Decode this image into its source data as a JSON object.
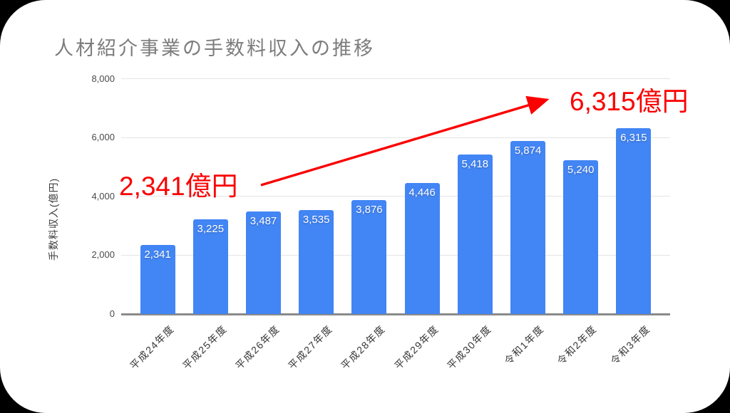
{
  "card": {
    "background": "#ffffff",
    "outside_background": "#000000"
  },
  "chart_data": {
    "type": "bar",
    "title": "人材紹介事業の手数料収入の推移",
    "categories": [
      "平成24年度",
      "平成25年度",
      "平成26年度",
      "平成27年度",
      "平成28年度",
      "平成29年度",
      "平成30年度",
      "令和1年度",
      "令和2年度",
      "令和3年度"
    ],
    "values": [
      2341,
      3225,
      3487,
      3535,
      3876,
      4446,
      5418,
      5874,
      5240,
      6315
    ],
    "bar_value_labels": [
      "2,341",
      "3,225",
      "3,487",
      "3,535",
      "3,876",
      "4,446",
      "5,418",
      "5,874",
      "5,240",
      "6,315"
    ],
    "xlabel": "",
    "ylabel": "手数料収入(億円)",
    "ylim": [
      0,
      8000
    ],
    "yticks": [
      0,
      2000,
      4000,
      6000,
      8000
    ],
    "ytick_labels": [
      "0",
      "2,000",
      "4,000",
      "6,000",
      "8,000"
    ],
    "grid": true,
    "legend": "none",
    "colors": {
      "bar": "#4285f4",
      "bar_label": "#ffffff",
      "title": "#7d7d7d",
      "gridline": "#e4e4e4",
      "axis_line": "#8a8a8a",
      "tick_label": "#4a4a4a"
    }
  },
  "annotations": {
    "color": "#fa0000",
    "start_label": "2,341億円",
    "end_label": "6,315億円"
  }
}
